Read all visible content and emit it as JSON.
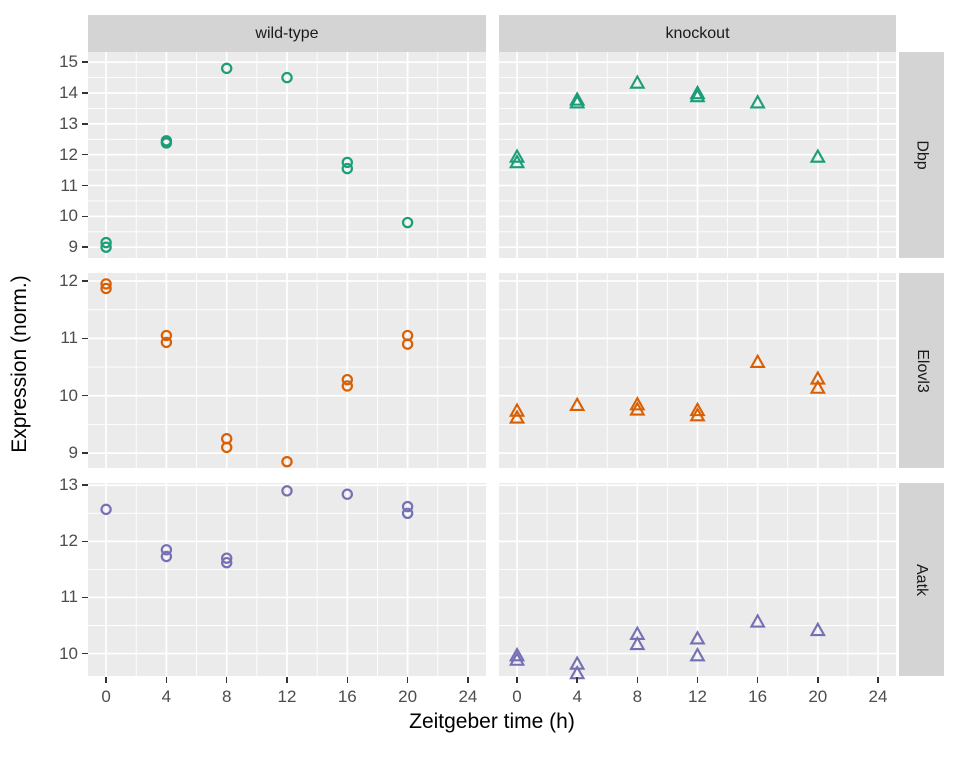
{
  "chart_data": {
    "type": "scatter",
    "title": "",
    "xlabel": "Zeitgeber time (h)",
    "ylabel": "Expression (norm.)",
    "facet_columns": [
      "wild-type",
      "knockout"
    ],
    "facet_rows": [
      "Dbp",
      "Elovl3",
      "Aatk"
    ],
    "legend": "none",
    "grid": true,
    "x_ticks": [
      0,
      4,
      8,
      12,
      16,
      20,
      24
    ],
    "x_minor": [
      2,
      6,
      10,
      14,
      18,
      22
    ],
    "xlim": [
      -1.2,
      25.2
    ],
    "marker_by_column": {
      "wild-type": "open-circle",
      "knockout": "open-triangle"
    },
    "color_by_row": {
      "Dbp": "#1B9E77",
      "Elovl3": "#D95F02",
      "Aatk": "#7570B3"
    },
    "panel_bg": "#EBEBEB",
    "strip_bg": "#D4D4D4",
    "grid_color": "#FFFFFF",
    "rows": [
      {
        "gene": "Dbp",
        "ylim": [
          8.65,
          15.33
        ],
        "y_ticks": [
          9,
          10,
          11,
          12,
          13,
          14,
          15
        ]
      },
      {
        "gene": "Elovl3",
        "ylim": [
          8.74,
          12.14
        ],
        "y_ticks": [
          9,
          10,
          11,
          12
        ]
      },
      {
        "gene": "Aatk",
        "ylim": [
          9.6,
          13.04
        ],
        "y_ticks": [
          10,
          11,
          12,
          13
        ]
      }
    ],
    "panels": [
      {
        "row": "Dbp",
        "col": "wild-type",
        "points": [
          [
            0,
            9.15
          ],
          [
            0,
            9.0
          ],
          [
            4,
            12.45
          ],
          [
            4,
            12.38
          ],
          [
            8,
            14.8
          ],
          [
            12,
            14.5
          ],
          [
            16,
            11.75
          ],
          [
            16,
            11.55
          ],
          [
            20,
            9.8
          ]
        ]
      },
      {
        "row": "Dbp",
        "col": "knockout",
        "points": [
          [
            0,
            11.9
          ],
          [
            0,
            11.72
          ],
          [
            4,
            13.75
          ],
          [
            4,
            13.66
          ],
          [
            8,
            14.3
          ],
          [
            12,
            13.96
          ],
          [
            12,
            13.86
          ],
          [
            16,
            13.66
          ],
          [
            20,
            11.9
          ]
        ]
      },
      {
        "row": "Elovl3",
        "col": "wild-type",
        "points": [
          [
            0,
            11.95
          ],
          [
            0,
            11.87
          ],
          [
            4,
            11.05
          ],
          [
            4,
            10.93
          ],
          [
            8,
            9.25
          ],
          [
            8,
            9.1
          ],
          [
            12,
            8.85
          ],
          [
            16,
            10.28
          ],
          [
            16,
            10.17
          ],
          [
            20,
            11.05
          ],
          [
            20,
            10.9
          ]
        ]
      },
      {
        "row": "Elovl3",
        "col": "knockout",
        "points": [
          [
            0,
            9.72
          ],
          [
            0,
            9.6
          ],
          [
            4,
            9.82
          ],
          [
            8,
            9.83
          ],
          [
            8,
            9.74
          ],
          [
            12,
            9.73
          ],
          [
            12,
            9.64
          ],
          [
            16,
            10.57
          ],
          [
            20,
            10.28
          ],
          [
            20,
            10.12
          ]
        ]
      },
      {
        "row": "Aatk",
        "col": "wild-type",
        "points": [
          [
            0,
            12.57
          ],
          [
            4,
            11.85
          ],
          [
            4,
            11.73
          ],
          [
            8,
            11.7
          ],
          [
            8,
            11.62
          ],
          [
            12,
            12.9
          ],
          [
            16,
            12.84
          ],
          [
            20,
            12.62
          ],
          [
            20,
            12.5
          ]
        ]
      },
      {
        "row": "Aatk",
        "col": "knockout",
        "points": [
          [
            0,
            9.95
          ],
          [
            0,
            9.87
          ],
          [
            4,
            9.8
          ],
          [
            4,
            9.63
          ],
          [
            8,
            10.33
          ],
          [
            8,
            10.15
          ],
          [
            12,
            10.25
          ],
          [
            12,
            9.95
          ],
          [
            16,
            10.55
          ],
          [
            20,
            10.4
          ]
        ]
      }
    ]
  }
}
